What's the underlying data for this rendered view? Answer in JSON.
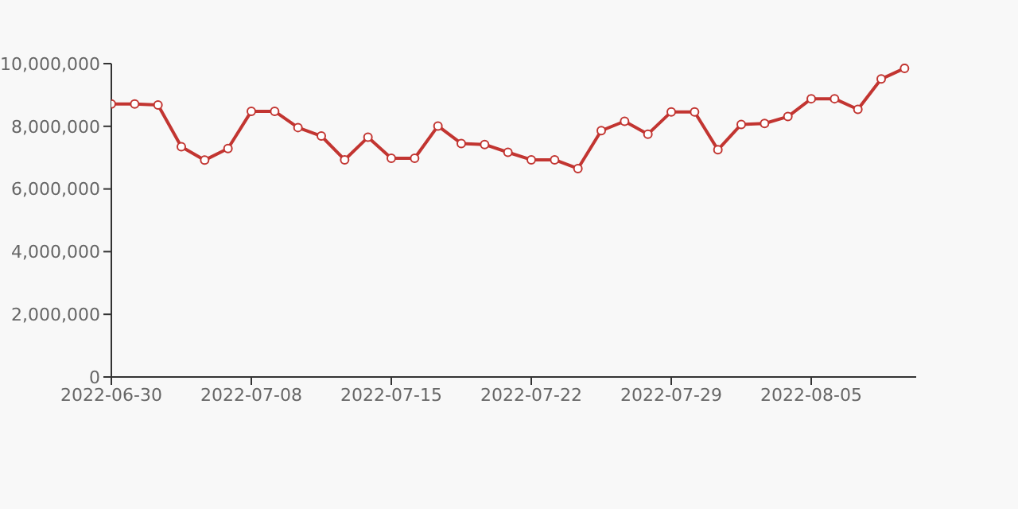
{
  "chart_data": {
    "type": "line",
    "categories": [
      "2022-06-30",
      null,
      null,
      null,
      null,
      null,
      "2022-07-08",
      null,
      null,
      null,
      null,
      null,
      "2022-07-15",
      null,
      null,
      null,
      null,
      null,
      "2022-07-22",
      null,
      null,
      null,
      null,
      null,
      "2022-07-29",
      null,
      null,
      null,
      null,
      null,
      "2022-08-05",
      null,
      null,
      null,
      null
    ],
    "series": [
      {
        "color": "#c23531",
        "values": [
          8710000,
          8710000,
          8680000,
          7350000,
          6920000,
          7290000,
          8480000,
          8480000,
          7960000,
          7690000,
          6930000,
          7650000,
          6980000,
          6980000,
          8010000,
          7450000,
          7420000,
          7170000,
          6930000,
          6930000,
          6650000,
          7860000,
          8160000,
          7750000,
          8460000,
          8460000,
          7250000,
          8060000,
          8090000,
          8310000,
          8880000,
          8880000,
          8540000,
          9510000,
          9850000
        ]
      }
    ],
    "ylim": [
      0,
      10000000
    ],
    "yticks": [
      0,
      {
        "value": 2000000,
        "label": "2,000,000"
      },
      {
        "value": 4000000,
        "label": "4,000,000"
      },
      {
        "value": 6000000,
        "label": "6,000,000"
      },
      {
        "value": 8000000,
        "label": "8,000,000"
      },
      {
        "value": 10000000,
        "label": "10,000,000"
      }
    ],
    "grid": false,
    "legend": false,
    "marker": "circle",
    "line_style": "solid"
  }
}
